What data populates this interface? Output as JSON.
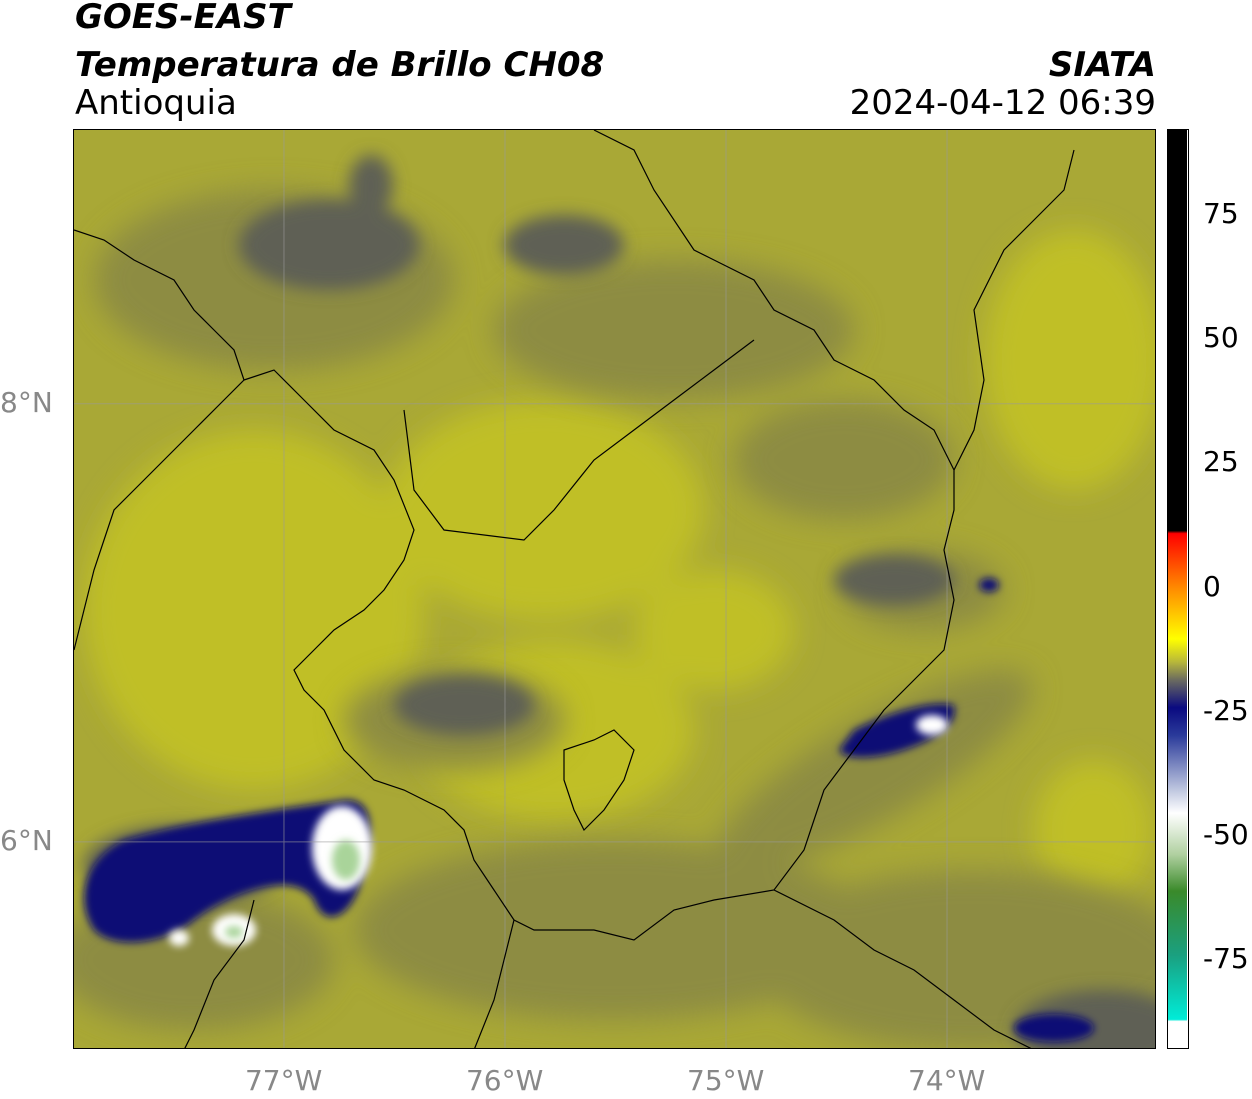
{
  "header": {
    "satellite": "GOES-EAST",
    "product": "Temperatura de Brillo CH08",
    "region": "Antioquia",
    "agency": "SIATA",
    "timestamp": "2024-04-12 06:39"
  },
  "map": {
    "lon_range": [
      -77.95,
      -73.05
    ],
    "lat_range": [
      5.05,
      9.25
    ],
    "lon_ticks": [
      {
        "value": -77,
        "label": "77°W"
      },
      {
        "value": -76,
        "label": "76°W"
      },
      {
        "value": -75,
        "label": "75°W"
      },
      {
        "value": -74,
        "label": "74°W"
      }
    ],
    "lat_ticks": [
      {
        "value": 8,
        "label": "8°N"
      },
      {
        "value": 6,
        "label": "6°N"
      }
    ],
    "gridlines": true,
    "colors": {
      "background_field": "#a9a836",
      "bright_field": "#c0bf25",
      "mid_field": "#8d8c42",
      "dark_field": "#5f6154",
      "cold_cloud": "#0d1174",
      "coldest_core": "#ffffff",
      "core_green": "#a9d49a"
    }
  },
  "colorbar": {
    "ticks": [
      {
        "value": 75,
        "label": "75"
      },
      {
        "value": 50,
        "label": "50"
      },
      {
        "value": 25,
        "label": "25"
      },
      {
        "value": 0,
        "label": "0"
      },
      {
        "value": -25,
        "label": "-25"
      },
      {
        "value": -50,
        "label": "-50"
      },
      {
        "value": -75,
        "label": "-75"
      }
    ],
    "range": [
      -93,
      92
    ]
  }
}
